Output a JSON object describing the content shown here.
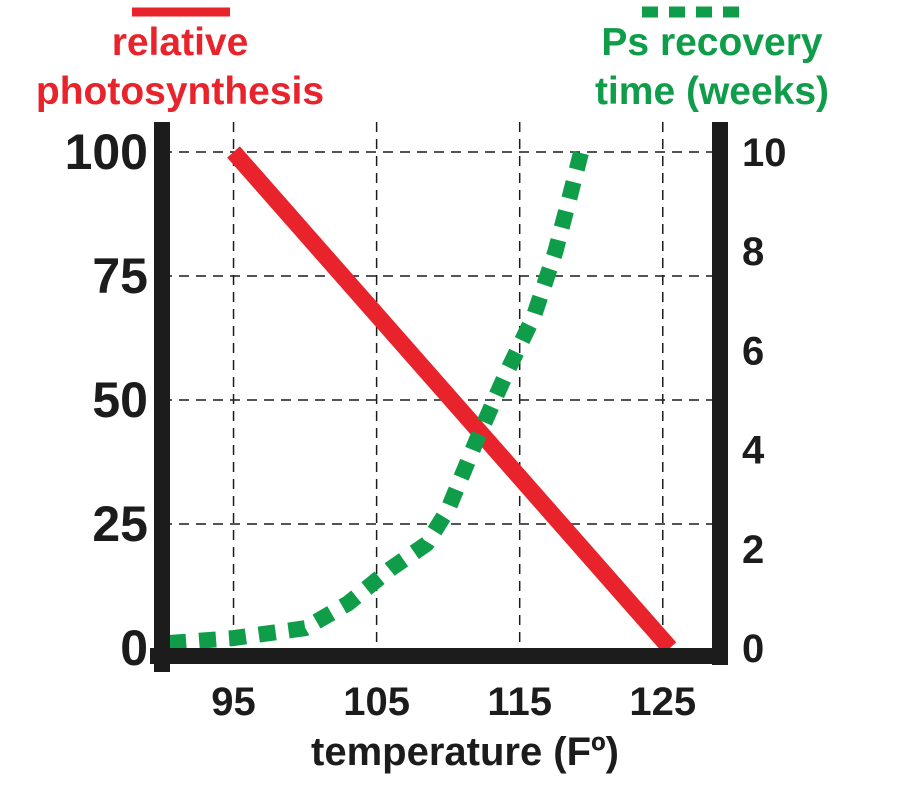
{
  "colors": {
    "photosynthesis": "#e8232b",
    "recovery": "#0f9d4a",
    "axis": "#1c1c1c",
    "grid": "#1c1c1c",
    "background": "#ffffff"
  },
  "chart_data": {
    "type": "line",
    "xlabel": "temperature (Fº)",
    "x_ticks": [
      "95",
      "105",
      "115",
      "125"
    ],
    "xlim": [
      90,
      129
    ],
    "grid": true,
    "y_left": {
      "ticks": [
        "0",
        "25",
        "50",
        "75",
        "100"
      ],
      "ylim": [
        0,
        100
      ]
    },
    "y_right": {
      "ticks": [
        "0",
        "2",
        "4",
        "6",
        "8",
        "10"
      ],
      "ylim": [
        0,
        10
      ]
    },
    "series": [
      {
        "name": "relative photosynthesis",
        "legend_lines": [
          "relative",
          "photosynthesis"
        ],
        "axis": "left",
        "style": "solid",
        "x": [
          95,
          125.5
        ],
        "y": [
          100,
          0
        ]
      },
      {
        "name": "Ps recovery time (weeks)",
        "legend_lines": [
          "Ps recovery",
          "time (weeks)"
        ],
        "axis": "right",
        "style": "dotted",
        "x": [
          90.5,
          95,
          100,
          103,
          106,
          108.5,
          110,
          112,
          114,
          116,
          117.5,
          118.5,
          119.3
        ],
        "y": [
          0.1,
          0.2,
          0.4,
          0.9,
          1.6,
          2.1,
          2.8,
          4.2,
          5.5,
          6.7,
          8,
          9.1,
          10
        ]
      }
    ]
  }
}
